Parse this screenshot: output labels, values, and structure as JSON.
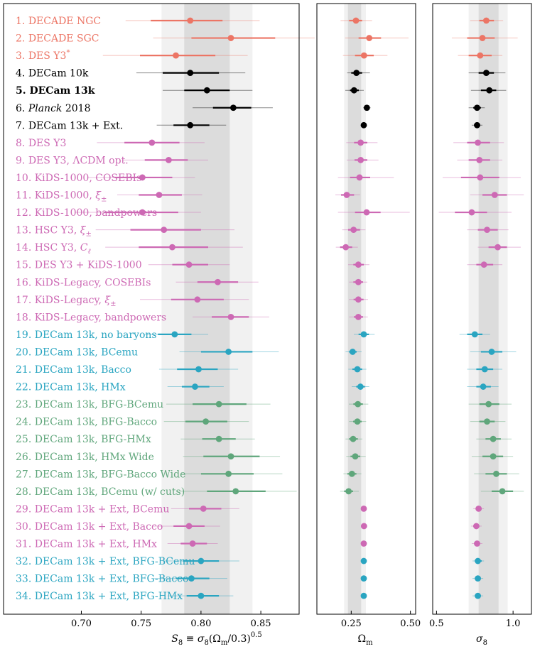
{
  "colors": {
    "salmon": "#ec7565",
    "black": "#000000",
    "pink": "#cd69b4",
    "teal": "#2aa5c1",
    "green": "#5fa67b",
    "band_dark": "#dcdcdc",
    "band_light": "#f1f1f1"
  },
  "chart_data": {
    "type": "forest",
    "entries": [
      {
        "n": "1.",
        "label": "DECADE NGC",
        "color": "salmon",
        "bold": false
      },
      {
        "n": "2.",
        "label": "DECADE SGC",
        "color": "salmon",
        "bold": false
      },
      {
        "n": "3.",
        "label": "DES Y3*",
        "color": "salmon",
        "bold": false
      },
      {
        "n": "4.",
        "label": "DECam 10k",
        "color": "black",
        "bold": false
      },
      {
        "n": "5.",
        "label": "DECam 13k",
        "color": "black",
        "bold": true
      },
      {
        "n": "6.",
        "label": "Planck 2018",
        "color": "black",
        "bold": false
      },
      {
        "n": "7.",
        "label": "DECam 13k + Ext.",
        "color": "black",
        "bold": false
      },
      {
        "n": "8.",
        "label": "DES Y3",
        "color": "pink",
        "bold": false
      },
      {
        "n": "9.",
        "label": "DES Y3, ΛCDM opt.",
        "color": "pink",
        "bold": false
      },
      {
        "n": "10.",
        "label": "KiDS-1000, COSEBIs",
        "color": "pink",
        "bold": false
      },
      {
        "n": "11.",
        "label": "KiDS-1000, ξ±",
        "color": "pink",
        "bold": false
      },
      {
        "n": "12.",
        "label": "KiDS-1000, bandpowers",
        "color": "pink",
        "bold": false
      },
      {
        "n": "13.",
        "label": "HSC Y3, ξ±",
        "color": "pink",
        "bold": false
      },
      {
        "n": "14.",
        "label": "HSC Y3, Cℓ",
        "color": "pink",
        "bold": false
      },
      {
        "n": "15.",
        "label": "DES Y3 + KiDS-1000",
        "color": "pink",
        "bold": false
      },
      {
        "n": "16.",
        "label": "KiDS-Legacy, COSEBIs",
        "color": "pink",
        "bold": false
      },
      {
        "n": "17.",
        "label": "KiDS-Legacy, ξ±",
        "color": "pink",
        "bold": false
      },
      {
        "n": "18.",
        "label": "KiDS-Legacy, bandpowers",
        "color": "pink",
        "bold": false
      },
      {
        "n": "19.",
        "label": "DECam 13k, no baryons",
        "color": "teal",
        "bold": false
      },
      {
        "n": "20.",
        "label": "DECam 13k, BCemu",
        "color": "teal",
        "bold": false
      },
      {
        "n": "21.",
        "label": "DECam 13k, Bacco",
        "color": "teal",
        "bold": false
      },
      {
        "n": "22.",
        "label": "DECam 13k, HMx",
        "color": "teal",
        "bold": false
      },
      {
        "n": "23.",
        "label": "DECam 13k, BFG-BCemu",
        "color": "green",
        "bold": false
      },
      {
        "n": "24.",
        "label": "DECam 13k, BFG-Bacco",
        "color": "green",
        "bold": false
      },
      {
        "n": "25.",
        "label": "DECam 13k, BFG-HMx",
        "color": "green",
        "bold": false
      },
      {
        "n": "26.",
        "label": "DECam 13k, HMx Wide",
        "color": "green",
        "bold": false
      },
      {
        "n": "27.",
        "label": "DECam 13k, BFG-Bacco Wide",
        "color": "green",
        "bold": false
      },
      {
        "n": "28.",
        "label": "DECam 13k, BCemu (w/ cuts)",
        "color": "green",
        "bold": false
      },
      {
        "n": "29.",
        "label": "DECam 13k + Ext, BCemu",
        "color": "pink",
        "bold": false
      },
      {
        "n": "30.",
        "label": "DECam 13k + Ext, Bacco",
        "color": "pink",
        "bold": false
      },
      {
        "n": "31.",
        "label": "DECam 13k + Ext, HMx",
        "color": "pink",
        "bold": false
      },
      {
        "n": "32.",
        "label": "DECam 13k + Ext, BFG-BCemu",
        "color": "teal",
        "bold": false
      },
      {
        "n": "33.",
        "label": "DECam 13k + Ext, BFG-Bacco",
        "color": "teal",
        "bold": false
      },
      {
        "n": "34.",
        "label": "DECam 13k + Ext, BFG-HMx",
        "color": "teal",
        "bold": false
      }
    ],
    "panels": [
      {
        "name": "S8",
        "xlabel": "S8 ≡ σ8(Ωm/0.3)^0.5",
        "xlim": [
          0.635,
          0.882
        ],
        "ticks": [
          0.7,
          0.75,
          0.8,
          0.85
        ],
        "tick_labels": [
          "0.70",
          "0.75",
          "0.80",
          "0.85"
        ],
        "band_1sigma": [
          0.786,
          0.824
        ],
        "band_2sigma": [
          0.767,
          0.843
        ],
        "points": [
          [
            0.791,
            0.758,
            0.818,
            0.737,
            0.849
          ],
          [
            0.825,
            0.792,
            0.862,
            0.76,
            0.895
          ],
          [
            0.779,
            0.749,
            0.812,
            0.718,
            0.839
          ],
          [
            0.791,
            0.768,
            0.815,
            0.746,
            0.837
          ],
          [
            0.805,
            0.786,
            0.824,
            0.768,
            0.843
          ],
          [
            0.827,
            0.81,
            0.842,
            0.793,
            0.86
          ],
          [
            0.791,
            0.777,
            0.807,
            0.763,
            0.821
          ],
          [
            0.759,
            0.736,
            0.782,
            0.713,
            0.803
          ],
          [
            0.773,
            0.753,
            0.789,
            0.735,
            0.806
          ],
          [
            0.751,
            0.728,
            0.776,
            0.705,
            0.795
          ],
          [
            0.765,
            0.748,
            0.784,
            0.73,
            0.801
          ],
          [
            0.751,
            0.719,
            0.781,
            0.695,
            0.8
          ],
          [
            0.769,
            0.741,
            0.8,
            0.712,
            0.828
          ],
          [
            0.776,
            0.748,
            0.806,
            0.72,
            0.835
          ],
          [
            0.79,
            0.776,
            0.806,
            0.756,
            0.824
          ],
          [
            0.814,
            0.797,
            0.831,
            0.779,
            0.848
          ],
          [
            0.797,
            0.775,
            0.819,
            0.749,
            0.84
          ],
          [
            0.825,
            0.809,
            0.84,
            0.793,
            0.857
          ],
          [
            0.778,
            0.764,
            0.792,
            0.752,
            0.806
          ],
          [
            0.823,
            0.8,
            0.843,
            0.782,
            0.865
          ],
          [
            0.798,
            0.78,
            0.814,
            0.765,
            0.831
          ],
          [
            0.795,
            0.784,
            0.807,
            0.772,
            0.819
          ],
          [
            0.815,
            0.793,
            0.838,
            0.771,
            0.858
          ],
          [
            0.804,
            0.787,
            0.822,
            0.769,
            0.84
          ],
          [
            0.815,
            0.801,
            0.829,
            0.783,
            0.845
          ],
          [
            0.825,
            0.802,
            0.849,
            0.785,
            0.866
          ],
          [
            0.823,
            0.8,
            0.844,
            0.783,
            0.868
          ],
          [
            0.829,
            0.805,
            0.854,
            0.782,
            0.88
          ],
          [
            0.802,
            0.79,
            0.817,
            0.775,
            0.832
          ],
          [
            0.79,
            0.777,
            0.803,
            0.76,
            0.816
          ],
          [
            0.793,
            0.783,
            0.805,
            0.772,
            0.814
          ],
          [
            0.8,
            0.785,
            0.815,
            0.768,
            0.832
          ],
          [
            0.792,
            0.779,
            0.807,
            0.761,
            0.822
          ],
          [
            0.8,
            0.788,
            0.815,
            0.772,
            0.827
          ]
        ]
      },
      {
        "name": "Omega_m",
        "xlabel": "Ωm",
        "xlim": [
          0.105,
          0.522
        ],
        "ticks": [
          0.25,
          0.5
        ],
        "tick_labels": [
          "0.25",
          "0.50"
        ],
        "band_1sigma": [
          0.236,
          0.292
        ],
        "band_2sigma": [
          0.22,
          0.312
        ],
        "points": [
          [
            0.27,
            0.241,
            0.296,
            0.205,
            0.338
          ],
          [
            0.326,
            0.281,
            0.376,
            0.224,
            0.492
          ],
          [
            0.304,
            0.266,
            0.345,
            0.215,
            0.403
          ],
          [
            0.272,
            0.25,
            0.296,
            0.233,
            0.329
          ],
          [
            0.262,
            0.245,
            0.282,
            0.225,
            0.303
          ],
          [
            0.316,
            0.308,
            0.324,
            0.3,
            0.332
          ],
          [
            0.303,
            0.3,
            0.306,
            0.297,
            0.309
          ],
          [
            0.29,
            0.262,
            0.318,
            0.229,
            0.361
          ],
          [
            0.29,
            0.264,
            0.318,
            0.231,
            0.365
          ],
          [
            0.285,
            0.245,
            0.33,
            0.194,
            0.43
          ],
          [
            0.231,
            0.207,
            0.262,
            0.183,
            0.287
          ],
          [
            0.315,
            0.266,
            0.374,
            0.194,
            0.497
          ],
          [
            0.26,
            0.237,
            0.287,
            0.212,
            0.31
          ],
          [
            0.227,
            0.203,
            0.254,
            0.185,
            0.278
          ],
          [
            0.28,
            0.259,
            0.303,
            0.237,
            0.327
          ],
          [
            0.28,
            0.259,
            0.3,
            0.241,
            0.318
          ],
          [
            0.28,
            0.26,
            0.302,
            0.24,
            0.321
          ],
          [
            0.28,
            0.261,
            0.3,
            0.241,
            0.32
          ],
          [
            0.303,
            0.281,
            0.325,
            0.261,
            0.349
          ],
          [
            0.256,
            0.241,
            0.273,
            0.226,
            0.294
          ],
          [
            0.276,
            0.255,
            0.296,
            0.238,
            0.314
          ],
          [
            0.289,
            0.271,
            0.308,
            0.252,
            0.326
          ],
          [
            0.278,
            0.259,
            0.299,
            0.24,
            0.322
          ],
          [
            0.276,
            0.258,
            0.294,
            0.241,
            0.313
          ],
          [
            0.258,
            0.241,
            0.278,
            0.226,
            0.297
          ],
          [
            0.267,
            0.247,
            0.288,
            0.229,
            0.311
          ],
          [
            0.253,
            0.234,
            0.272,
            0.217,
            0.293
          ],
          [
            0.239,
            0.22,
            0.258,
            0.203,
            0.282
          ],
          [
            0.303,
            0.3,
            0.306,
            0.297,
            0.309
          ],
          [
            0.304,
            0.301,
            0.307,
            0.298,
            0.31
          ],
          [
            0.303,
            0.3,
            0.306,
            0.297,
            0.309
          ],
          [
            0.303,
            0.3,
            0.306,
            0.297,
            0.309
          ],
          [
            0.303,
            0.3,
            0.306,
            0.297,
            0.309
          ],
          [
            0.303,
            0.3,
            0.306,
            0.297,
            0.309
          ]
        ]
      },
      {
        "name": "sigma_8",
        "xlabel": "σ8",
        "xlim": [
          0.475,
          1.12
        ],
        "ticks": [
          0.5,
          1.0
        ],
        "tick_labels": [
          "0.5",
          "1.0"
        ],
        "band_1sigma": [
          0.775,
          0.905
        ],
        "band_2sigma": [
          0.71,
          0.965
        ],
        "points": [
          [
            0.825,
            0.78,
            0.875,
            0.72,
            0.935
          ],
          [
            0.8,
            0.7,
            0.88,
            0.6,
            1.03
          ],
          [
            0.785,
            0.71,
            0.86,
            0.64,
            0.93
          ],
          [
            0.825,
            0.775,
            0.875,
            0.71,
            0.95
          ],
          [
            0.845,
            0.79,
            0.89,
            0.725,
            0.955
          ],
          [
            0.765,
            0.74,
            0.79,
            0.71,
            0.815
          ],
          [
            0.765,
            0.745,
            0.785,
            0.73,
            0.8
          ],
          [
            0.77,
            0.7,
            0.85,
            0.61,
            0.94
          ],
          [
            0.78,
            0.71,
            0.85,
            0.635,
            0.93
          ],
          [
            0.785,
            0.66,
            0.91,
            0.54,
            1.05
          ],
          [
            0.88,
            0.8,
            0.96,
            0.72,
            1.07
          ],
          [
            0.73,
            0.62,
            0.83,
            0.515,
            0.99
          ],
          [
            0.83,
            0.77,
            0.9,
            0.7,
            0.97
          ],
          [
            0.9,
            0.84,
            0.96,
            0.77,
            1.05
          ],
          [
            0.81,
            0.76,
            0.87,
            0.7,
            0.93
          ],
          [
            null,
            null,
            null,
            null,
            null
          ],
          [
            null,
            null,
            null,
            null,
            null
          ],
          [
            null,
            null,
            null,
            null,
            null
          ],
          [
            0.75,
            0.7,
            0.8,
            0.65,
            0.85
          ],
          [
            0.86,
            0.79,
            0.93,
            0.72,
            1.02
          ],
          [
            0.815,
            0.76,
            0.87,
            0.7,
            0.93
          ],
          [
            0.805,
            0.76,
            0.855,
            0.7,
            0.905
          ],
          [
            0.84,
            0.78,
            0.91,
            0.71,
            0.99
          ],
          [
            0.83,
            0.78,
            0.88,
            0.72,
            0.95
          ],
          [
            0.87,
            0.82,
            0.92,
            0.76,
            0.99
          ],
          [
            0.87,
            0.8,
            0.935,
            0.73,
            1.0
          ],
          [
            0.89,
            0.82,
            0.96,
            0.745,
            1.04
          ],
          [
            0.93,
            0.86,
            1.0,
            0.79,
            1.07
          ],
          [
            0.775,
            0.755,
            0.795,
            0.74,
            0.81
          ],
          [
            0.76,
            0.74,
            0.78,
            0.725,
            0.795
          ],
          [
            0.765,
            0.745,
            0.785,
            0.73,
            0.8
          ],
          [
            0.77,
            0.75,
            0.795,
            0.735,
            0.81
          ],
          [
            0.77,
            0.75,
            0.79,
            0.735,
            0.805
          ],
          [
            0.77,
            0.75,
            0.79,
            0.735,
            0.805
          ]
        ]
      }
    ]
  }
}
